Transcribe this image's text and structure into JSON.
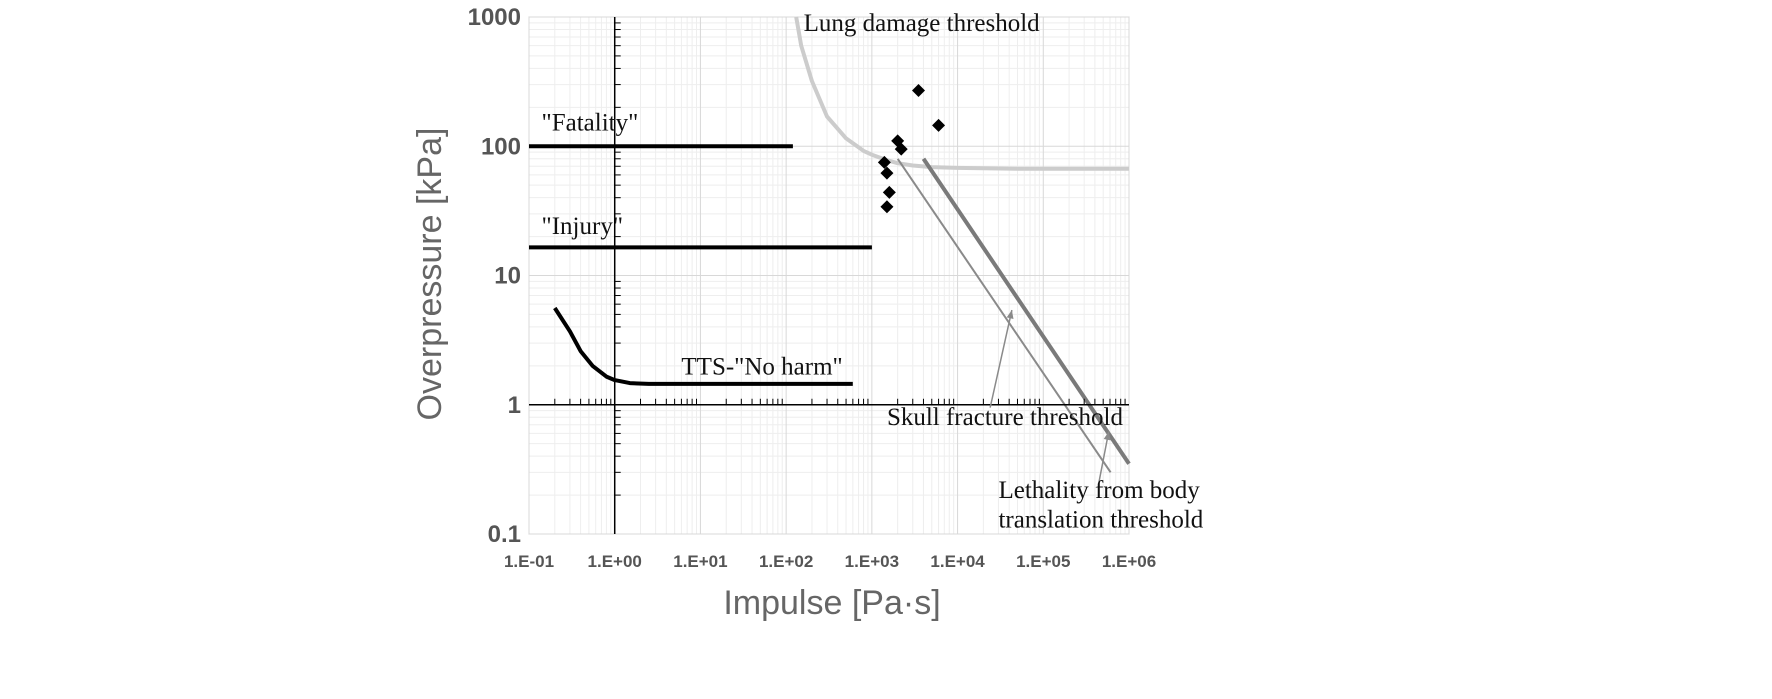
{
  "chart_data": {
    "type": "line",
    "xscale": "log",
    "yscale": "log",
    "xlim": [
      0.1,
      1000000
    ],
    "ylim": [
      0.1,
      1000
    ],
    "xlabel": "Impulse [Pa·s]",
    "ylabel": "Overpressure [kPa]",
    "x_ticks": [
      {
        "value": 0.1,
        "label": "1.E-01"
      },
      {
        "value": 1,
        "label": "1.E+00"
      },
      {
        "value": 10,
        "label": "1.E+01"
      },
      {
        "value": 100,
        "label": "1.E+02"
      },
      {
        "value": 1000,
        "label": "1.E+03"
      },
      {
        "value": 10000,
        "label": "1.E+04"
      },
      {
        "value": 100000,
        "label": "1.E+05"
      },
      {
        "value": 1000000,
        "label": "1.E+06"
      }
    ],
    "y_ticks": [
      {
        "value": 0.1,
        "label": "0.1"
      },
      {
        "value": 1,
        "label": "1"
      },
      {
        "value": 10,
        "label": "10"
      },
      {
        "value": 100,
        "label": "100"
      },
      {
        "value": 1000,
        "label": "1000"
      }
    ],
    "colors": {
      "black": "#000000",
      "lung": "#cccccc",
      "skull": "#8a8a8a",
      "body": "#7a7a7a",
      "grid_major": "#d8d8d8",
      "grid_minor": "#eeeeee",
      "axis": "#000000"
    },
    "series": [
      {
        "name": "Fatality",
        "color": "black",
        "width": 4,
        "x": [
          0.1,
          120
        ],
        "y": [
          100,
          100
        ]
      },
      {
        "name": "Injury",
        "color": "black",
        "width": 4,
        "x": [
          0.1,
          1000
        ],
        "y": [
          16.5,
          16.5
        ]
      },
      {
        "name": "TTS-No harm",
        "color": "black",
        "width": 4,
        "x": [
          0.2,
          0.3,
          0.4,
          0.55,
          0.8,
          1.0,
          1.5,
          2.5,
          5,
          20,
          100,
          600
        ],
        "y": [
          5.6,
          3.7,
          2.6,
          2.0,
          1.65,
          1.55,
          1.47,
          1.45,
          1.45,
          1.45,
          1.45,
          1.45
        ]
      },
      {
        "name": "Lung damage threshold",
        "color": "lung",
        "width": 4,
        "x": [
          131,
          150,
          200,
          300,
          500,
          800,
          1000,
          1500,
          2000,
          3000,
          5000,
          10000,
          50000,
          1000000
        ],
        "y": [
          1000,
          600,
          320,
          170,
          115,
          92,
          86,
          78,
          74,
          71,
          69,
          68,
          67,
          67
        ]
      },
      {
        "name": "Skull fracture threshold",
        "color": "skull",
        "width": 2,
        "x": [
          2000,
          610000
        ],
        "y": [
          80,
          0.3
        ]
      },
      {
        "name": "Lethality from body translation threshold",
        "color": "body",
        "width": 4,
        "x": [
          4000,
          1000000
        ],
        "y": [
          80,
          0.35
        ]
      }
    ],
    "scatter": {
      "marker": "diamond",
      "x": [
        3500,
        6000,
        2000,
        2200,
        1400,
        1500,
        1600,
        1500
      ],
      "y": [
        270,
        145,
        110,
        95,
        75,
        62,
        44,
        34
      ]
    },
    "annotations": [
      {
        "text": "Lung damage threshold",
        "x": 160,
        "y": 780
      },
      {
        "text": "\"Fatality\"",
        "x": 0.14,
        "y": 132
      },
      {
        "text": "\"Injury\"",
        "x": 0.14,
        "y": 21
      },
      {
        "text": "TTS-\"No harm\"",
        "x": 6,
        "y": 1.72
      },
      {
        "text": "Skull fracture threshold",
        "x": 1500,
        "y": 0.7
      },
      {
        "text": "Lethality from body",
        "x": 30000,
        "y": 0.19
      },
      {
        "text": "translation threshold",
        "x": 30000,
        "y": 0.112
      }
    ],
    "arrows": [
      {
        "from_x": 24000,
        "from_y": 0.95,
        "to_x": 43000,
        "to_y": 5.4,
        "color": "skull"
      },
      {
        "from_x": 440000,
        "from_y": 0.24,
        "to_x": 580000,
        "to_y": 0.62,
        "color": "skull"
      }
    ]
  }
}
